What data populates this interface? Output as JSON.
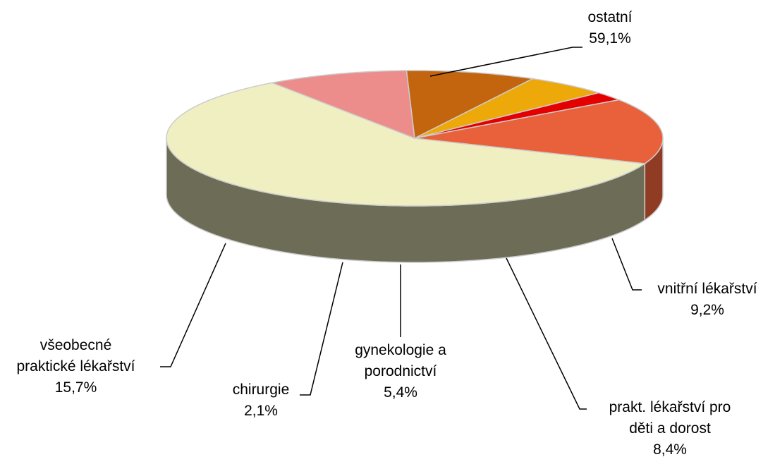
{
  "chart_data": {
    "type": "pie3d",
    "categories": [
      "ostatní",
      "vnitřní lékařství",
      "prakt. lékařství pro\nděti a dorost",
      "gynekologie a\nporodnictví",
      "chirurgie",
      "všeobecné\npraktické lékařství"
    ],
    "values": [
      59.1,
      9.2,
      8.4,
      5.4,
      2.1,
      15.7
    ],
    "value_labels": [
      "59,1%",
      "9,2%",
      "8,4%",
      "5,4%",
      "2,1%",
      "15,7%"
    ],
    "colors": [
      "#f0efc2",
      "#ec8d8c",
      "#c3650f",
      "#eda80a",
      "#e40000",
      "#e8613b"
    ]
  }
}
